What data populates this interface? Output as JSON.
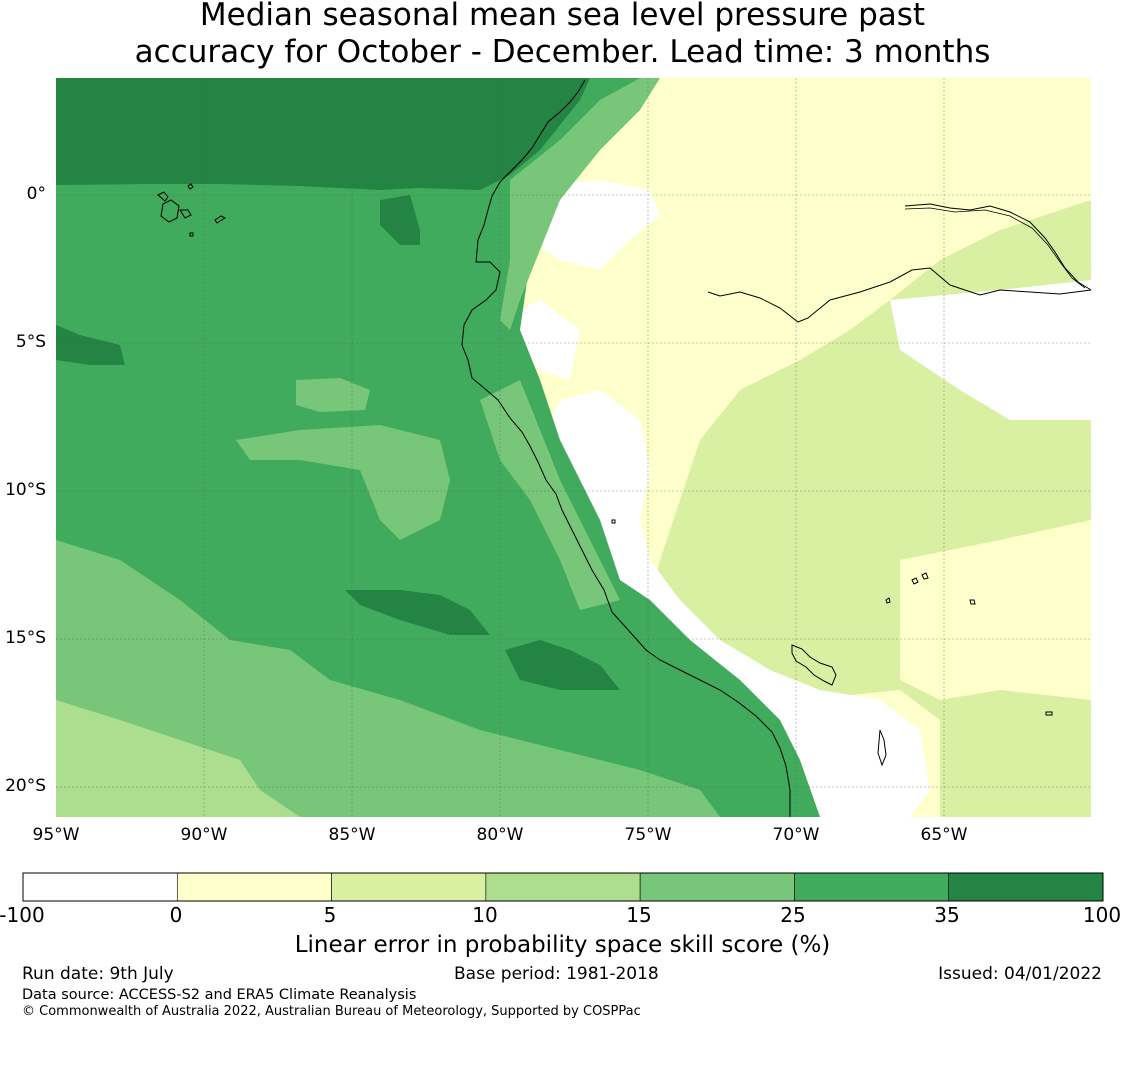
{
  "title_line1": "Median seasonal mean sea level pressure past",
  "title_line2": "accuracy for October - December. Lead time: 3 months",
  "map": {
    "lon_ticks": [
      "95°W",
      "90°W",
      "85°W",
      "80°W",
      "75°W",
      "70°W",
      "65°W"
    ],
    "lat_ticks": [
      "0°",
      "5°S",
      "10°S",
      "15°S",
      "20°S"
    ],
    "lon_range": [
      -95,
      -60
    ],
    "lat_range": [
      -21,
      4
    ],
    "grid": true
  },
  "colorbar": {
    "boundaries": [
      "-100",
      "0",
      "5",
      "10",
      "15",
      "25",
      "35",
      "100"
    ],
    "colors": [
      "#ffffff",
      "#ffffcc",
      "#d9f0a3",
      "#addd8e",
      "#78c679",
      "#41ab5d",
      "#238443"
    ],
    "label": "Linear error in probability space skill score (%)"
  },
  "footer": {
    "run_date": "Run date: 9th July",
    "base_period": "Base period: 1981-2018",
    "issued": "Issued: 04/01/2022",
    "data_source": "Data source: ACCESS-S2 and ERA5 Climate Reanalysis",
    "copyright": "© Commonwealth of Australia 2022, Australian Bureau of Meteorology, Supported by COSPPac"
  }
}
